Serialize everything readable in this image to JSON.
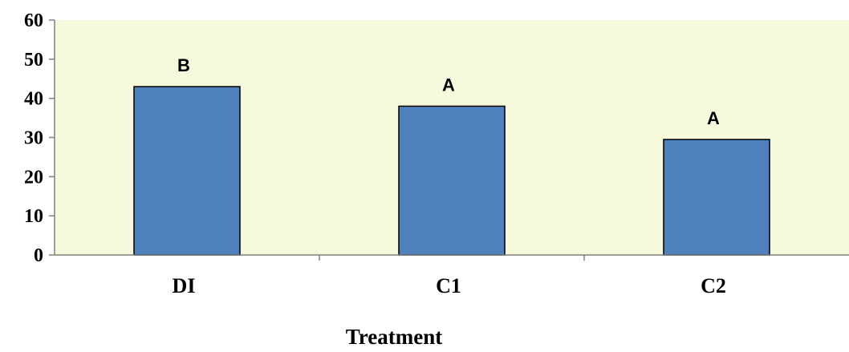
{
  "chart_data": {
    "type": "bar",
    "title": "",
    "xlabel": "Treatment",
    "ylabel": "",
    "categories": [
      "DI",
      "C1",
      "C2"
    ],
    "values": [
      43,
      38,
      29.5
    ],
    "data_labels": [
      "B",
      "A",
      "A"
    ],
    "ylim": [
      0,
      60
    ],
    "yticks": [
      0,
      10,
      20,
      30,
      40,
      50,
      60
    ],
    "grid": false,
    "legend": "none",
    "colors": {
      "bar_fill": "#4f81bd",
      "bar_stroke": "#000000",
      "plot_background": "#f7f9dc"
    }
  }
}
